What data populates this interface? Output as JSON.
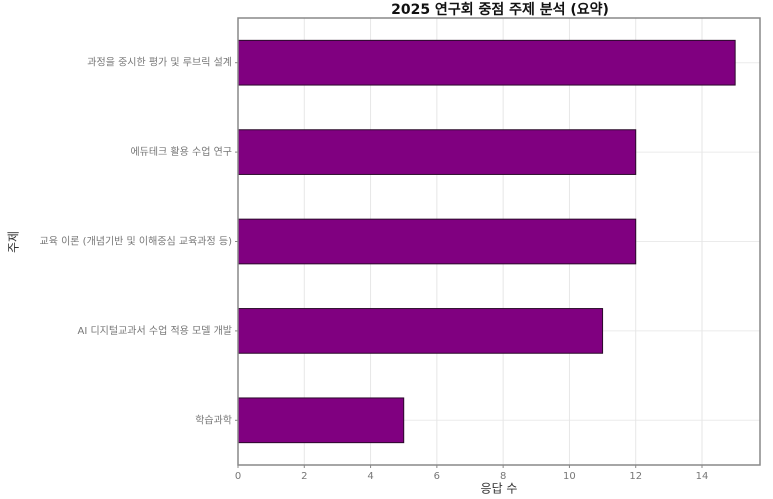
{
  "chart_data": {
    "type": "bar",
    "orientation": "horizontal",
    "title": "2025 연구회 중점 주제 분석 (요약)",
    "x_label": "응답 수",
    "y_label": "주제",
    "categories": [
      "과정을 중시한 평가 및 루브릭 설계",
      "에듀테크 활용 수업 연구",
      "교육 이론 (개념기반 및 이해중심 교육과정 등)",
      "AI 디지털교과서 수업 적용 모델 개발",
      "학습과학"
    ],
    "values": [
      15,
      12,
      12,
      11,
      5
    ],
    "color": "#800080",
    "xlim": [
      0,
      15.75
    ],
    "xticks": [
      0,
      2,
      4,
      6,
      8,
      10,
      12,
      14
    ],
    "grid": true
  }
}
